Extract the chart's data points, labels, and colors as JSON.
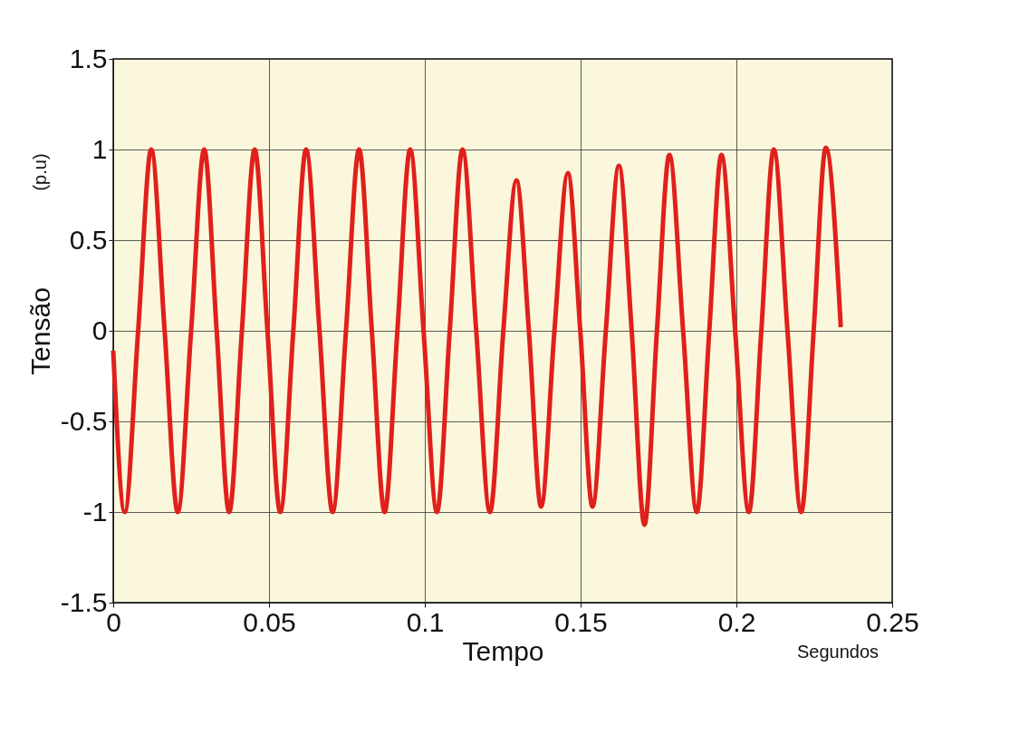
{
  "chart_data": {
    "type": "line",
    "xlabel": "Tempo",
    "ylabel": "Tensão",
    "annotations": [
      "(p.u)",
      "Segundos"
    ],
    "xlim": [
      0,
      0.25
    ],
    "ylim": [
      -1.5,
      1.5
    ],
    "xticks": [
      0,
      0.05,
      0.1,
      0.15,
      0.2,
      0.25
    ],
    "yticks": [
      -1.5,
      -1,
      -0.5,
      0,
      0.5,
      1,
      1.5
    ],
    "grid": true,
    "line_style": "solid",
    "series": [
      {
        "color": "#e0201b",
        "x": [
          0,
          0.0037,
          0.008,
          0.0122,
          0.0165,
          0.0207,
          0.025,
          0.0292,
          0.0332,
          0.0372,
          0.0413,
          0.0454,
          0.0495,
          0.0536,
          0.0578,
          0.0619,
          0.0662,
          0.0704,
          0.0747,
          0.0789,
          0.083,
          0.0871,
          0.0912,
          0.0953,
          0.0996,
          0.1039,
          0.108,
          0.1121,
          0.1165,
          0.1209,
          0.1252,
          0.1294,
          0.1334,
          0.1373,
          0.1416,
          0.1459,
          0.1499,
          0.1538,
          0.1581,
          0.1623,
          0.1664,
          0.1705,
          0.1745,
          0.1785,
          0.1829,
          0.1873,
          0.1913,
          0.1952,
          0.1996,
          0.204,
          0.208,
          0.212,
          0.2164,
          0.2208,
          0.2248,
          0.2287,
          0.2335
        ],
        "values": [
          -0.11,
          -1,
          0,
          1,
          0,
          -1,
          0,
          1,
          0,
          -1,
          0,
          1,
          0,
          -1,
          0,
          1,
          0,
          -1,
          0,
          1,
          0,
          -1,
          0,
          1,
          0,
          -1,
          0,
          1,
          0,
          -1,
          0,
          0.83,
          0,
          -0.97,
          0,
          0.87,
          0,
          -0.97,
          0,
          0.91,
          0,
          -1.07,
          0,
          0.97,
          0,
          -1,
          0,
          0.97,
          0,
          -1,
          0,
          1,
          0,
          -1,
          0,
          1.01,
          0.02
        ]
      }
    ]
  }
}
